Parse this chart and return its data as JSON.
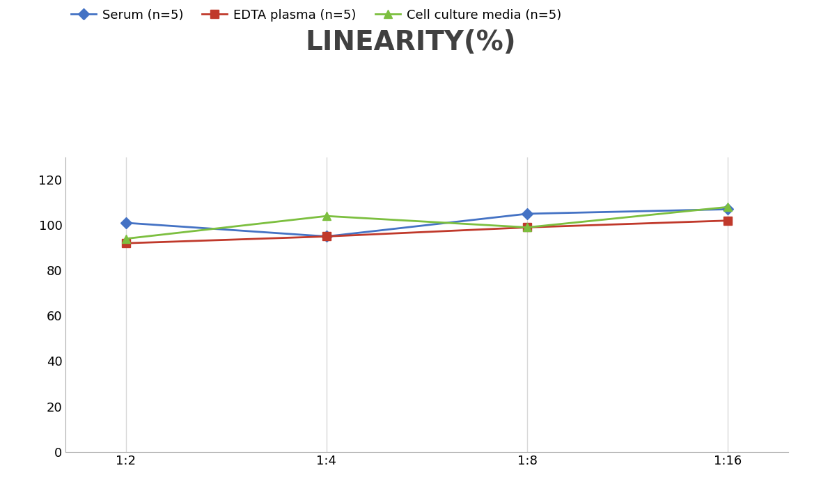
{
  "title": "LINEARITY(%)",
  "title_fontsize": 28,
  "title_fontweight": "bold",
  "x_labels": [
    "1:2",
    "1:4",
    "1:8",
    "1:16"
  ],
  "x_positions": [
    0,
    1,
    2,
    3
  ],
  "series": [
    {
      "label": "Serum (n=5)",
      "values": [
        101,
        95,
        105,
        107
      ],
      "color": "#4472C4",
      "marker": "D",
      "marker_size": 8,
      "linewidth": 2.0
    },
    {
      "label": "EDTA plasma (n=5)",
      "values": [
        92,
        95,
        99,
        102
      ],
      "color": "#C0392B",
      "marker": "s",
      "marker_size": 8,
      "linewidth": 2.0
    },
    {
      "label": "Cell culture media (n=5)",
      "values": [
        94,
        104,
        99,
        108
      ],
      "color": "#7CBF3F",
      "marker": "^",
      "marker_size": 9,
      "linewidth": 2.0
    }
  ],
  "ylim": [
    0,
    130
  ],
  "yticks": [
    0,
    20,
    40,
    60,
    80,
    100,
    120
  ],
  "background_color": "#ffffff",
  "grid_color": "#d8d8d8",
  "legend_fontsize": 13,
  "tick_fontsize": 13
}
